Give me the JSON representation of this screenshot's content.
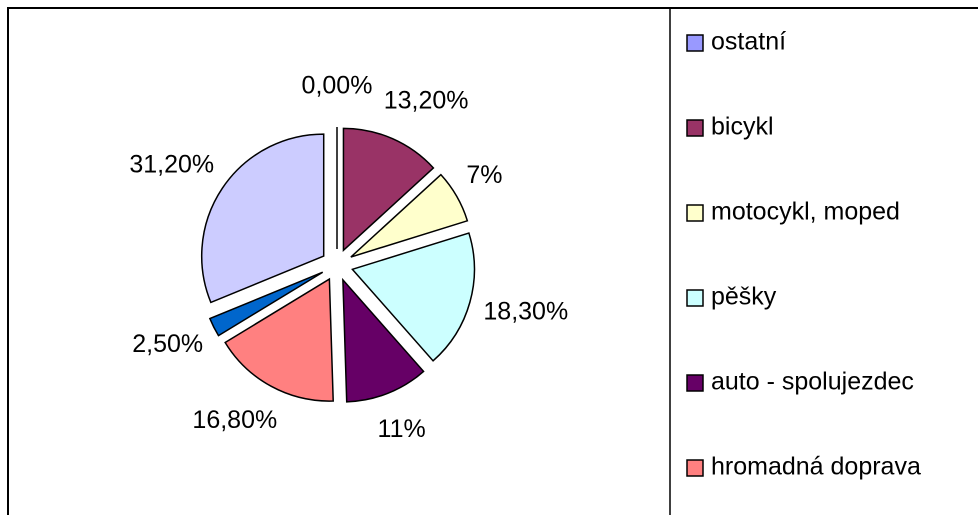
{
  "chart_data": {
    "type": "pie",
    "categories": [
      "ostatní",
      "bicykl",
      "motocykl, moped",
      "pěšky",
      "auto - spolujezdec",
      "hromadná doprava",
      null,
      null
    ],
    "values": [
      0,
      13.2,
      7,
      18.3,
      11,
      16.8,
      2.5,
      31.2
    ],
    "value_labels": [
      "0,00%",
      "13,20%",
      "7%",
      "18,30%",
      "11%",
      "16,80%",
      "2,50%",
      "31,20%"
    ],
    "colors": [
      "#9999ff",
      "#993366",
      "#ffffcc",
      "#ccffff",
      "#660066",
      "#ff8080",
      "#0066cc",
      "#ccccff"
    ]
  }
}
